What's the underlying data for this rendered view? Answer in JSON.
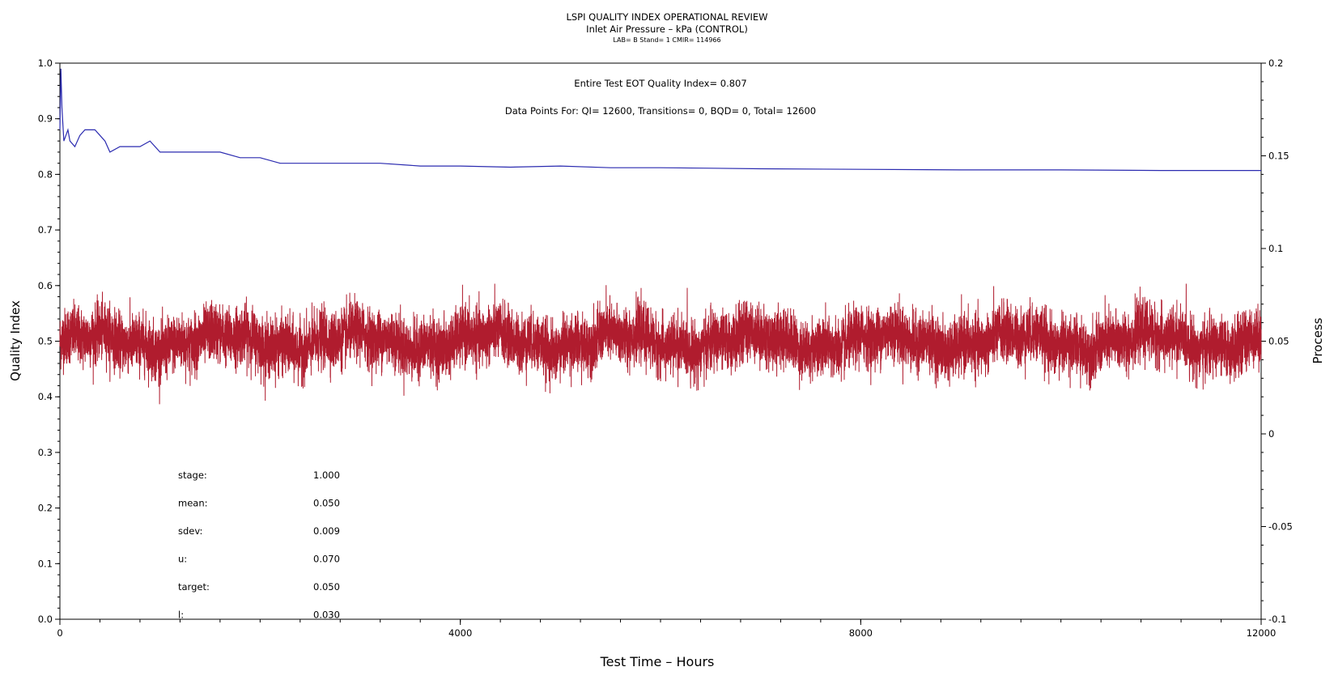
{
  "header": {
    "title": "LSPI QUALITY INDEX OPERATIONAL REVIEW",
    "subtitle": "Inlet Air Pressure – kPa (CONTROL)",
    "info_line": "LAB= B Stand= 1 CMIR= 114966"
  },
  "chart_data": {
    "type": "line",
    "title": "LSPI QUALITY INDEX OPERATIONAL REVIEW",
    "xlabel": "Test Time – Hours",
    "ylabel": "Quality Index",
    "y2label": "Process",
    "xlim": [
      0,
      12000
    ],
    "ylim": [
      0,
      1
    ],
    "y2lim": [
      -0.1,
      0.2
    ],
    "x_ticks": [
      0,
      4000,
      8000,
      12000
    ],
    "y_ticks": [
      "0.0",
      "0.1",
      "0.2",
      "0.3",
      "0.4",
      "0.5",
      "0.6",
      "0.7",
      "0.8",
      "0.9",
      "1.0"
    ],
    "y2_ticks": [
      "-0.1",
      "-0.05",
      "0",
      "0.05",
      "0.1",
      "0.15",
      "0.2"
    ],
    "annotations": [
      "Entire Test EOT Quality Index=   0.807",
      "Data Points For: QI= 12600, Transitions=     0, BQD=     0, Total= 12600"
    ],
    "stats": [
      {
        "label": "stage:",
        "value": "1.000"
      },
      {
        "label": "mean:",
        "value": "0.050"
      },
      {
        "label": "sdev:",
        "value": "0.009"
      },
      {
        "label": "u:",
        "value": "0.070"
      },
      {
        "label": "target:",
        "value": "0.050"
      },
      {
        "label": "l:",
        "value": "0.030"
      }
    ],
    "series": [
      {
        "axis": "left",
        "color": "#2b2bb0",
        "x": [
          0,
          10,
          20,
          40,
          60,
          80,
          100,
          150,
          200,
          250,
          300,
          350,
          400,
          450,
          500,
          600,
          700,
          800,
          900,
          1000,
          1100,
          1200,
          1400,
          1600,
          1800,
          2000,
          2200,
          2500,
          2800,
          3200,
          3600,
          4000,
          4500,
          5000,
          5500,
          6000,
          6500,
          7000,
          8000,
          9000,
          10000,
          11000,
          12000
        ],
        "values": [
          0.88,
          0.99,
          0.92,
          0.86,
          0.87,
          0.88,
          0.86,
          0.85,
          0.87,
          0.88,
          0.88,
          0.88,
          0.87,
          0.86,
          0.84,
          0.85,
          0.85,
          0.85,
          0.86,
          0.84,
          0.84,
          0.84,
          0.84,
          0.84,
          0.83,
          0.83,
          0.82,
          0.82,
          0.82,
          0.82,
          0.815,
          0.815,
          0.813,
          0.815,
          0.812,
          0.812,
          0.811,
          0.81,
          0.809,
          0.808,
          0.808,
          0.807,
          0.807
        ]
      },
      {
        "axis": "right",
        "color": "#b01c2e",
        "n_points": 12600,
        "mean": 0.05,
        "sdev": 0.009,
        "min": 0.016,
        "max": 0.081
      }
    ]
  }
}
